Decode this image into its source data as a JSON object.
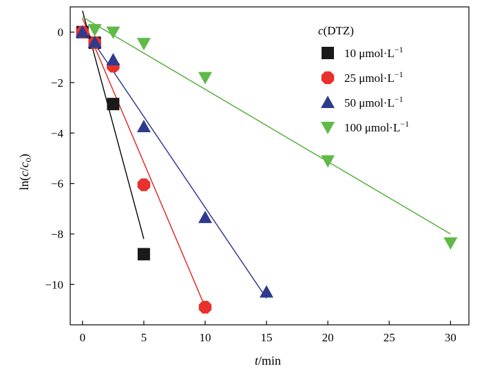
{
  "chart_data": {
    "type": "scatter",
    "title": "",
    "xlabel": {
      "italic": "t",
      "rest": "/min"
    },
    "ylabel": {
      "prefix": "ln(",
      "c": "c",
      "slash": "/",
      "c0": "c",
      "sub": "0",
      "suffix": ")"
    },
    "xlim": [
      -1,
      31.5
    ],
    "ylim": [
      -11.6,
      1.0
    ],
    "xticks": [
      0,
      5,
      10,
      15,
      20,
      25,
      30
    ],
    "yticks": [
      0,
      -2,
      -4,
      -6,
      -8,
      -10
    ],
    "legend": {
      "title": {
        "italic": "c",
        "rest": "(DTZ)"
      },
      "placement": "top-right",
      "unit": {
        "text": "μmol·L",
        "sup": "−1"
      }
    },
    "series": [
      {
        "name": "10",
        "marker": "square",
        "color": "#1a1a1a",
        "line_color": "#000000",
        "points": [
          [
            0,
            0
          ],
          [
            1,
            -0.42
          ],
          [
            2.5,
            -2.85
          ],
          [
            5,
            -8.8
          ]
        ],
        "fit": [
          [
            0,
            0.85
          ],
          [
            5,
            -8.2
          ]
        ]
      },
      {
        "name": "25",
        "marker": "octagon",
        "color": "#e8302c",
        "line_color": "#e0201c",
        "points": [
          [
            0,
            0
          ],
          [
            1,
            -0.42
          ],
          [
            2.5,
            -1.35
          ],
          [
            5,
            -6.05
          ],
          [
            10,
            -10.9
          ]
        ],
        "fit": [
          [
            0,
            0.55
          ],
          [
            10,
            -10.9
          ]
        ]
      },
      {
        "name": "50",
        "marker": "triangle-up",
        "color": "#2e3b8c",
        "line_color": "#23308a",
        "points": [
          [
            0,
            0
          ],
          [
            1,
            -0.4
          ],
          [
            2.5,
            -1.1
          ],
          [
            5,
            -3.75
          ],
          [
            10,
            -7.35
          ],
          [
            15,
            -10.3
          ]
        ],
        "fit": [
          [
            0,
            0.25
          ],
          [
            15,
            -10.55
          ]
        ]
      },
      {
        "name": "100",
        "marker": "triangle-down",
        "color": "#5fba46",
        "line_color": "#4aab2f",
        "points": [
          [
            1,
            0.1
          ],
          [
            2.5,
            0
          ],
          [
            5,
            -0.45
          ],
          [
            10,
            -1.8
          ],
          [
            20,
            -5.1
          ],
          [
            30,
            -8.35
          ]
        ],
        "fit": [
          [
            0,
            0.6
          ],
          [
            30,
            -8.0
          ]
        ]
      }
    ]
  }
}
